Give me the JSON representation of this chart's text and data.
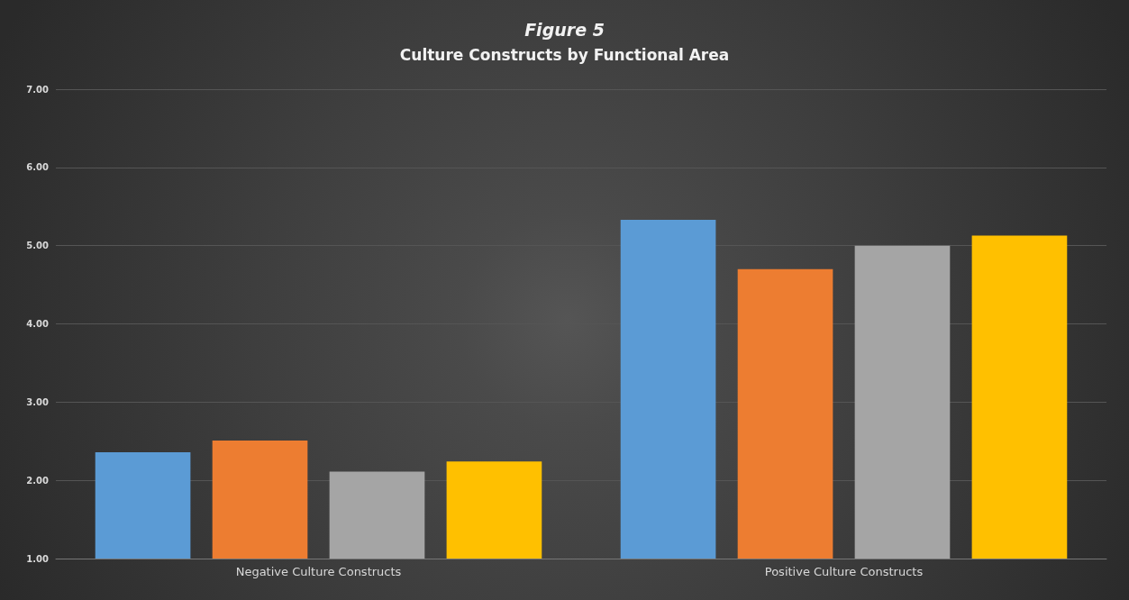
{
  "chart_data": {
    "type": "bar",
    "title": "Figure 5",
    "subtitle": "Culture Constructs by Functional Area",
    "categories": [
      "Negative Culture Constructs",
      "Positive Culture Constructs"
    ],
    "series": [
      {
        "color": "#5b9bd5",
        "values": [
          2.36,
          5.33
        ]
      },
      {
        "color": "#ed7d31",
        "values": [
          2.51,
          4.7
        ]
      },
      {
        "color": "#a5a5a5",
        "values": [
          2.11,
          5.0
        ]
      },
      {
        "color": "#ffc000",
        "values": [
          2.24,
          5.13
        ]
      }
    ],
    "ylim": [
      1,
      7
    ],
    "yticks": [
      {
        "value": 1,
        "label": "1.00"
      },
      {
        "value": 2,
        "label": "2.00"
      },
      {
        "value": 3,
        "label": "3.00"
      },
      {
        "value": 4,
        "label": "4.00"
      },
      {
        "value": 5,
        "label": "5.00"
      },
      {
        "value": 6,
        "label": "6.00"
      },
      {
        "value": 7,
        "label": "7.00"
      }
    ],
    "grid": "y"
  }
}
